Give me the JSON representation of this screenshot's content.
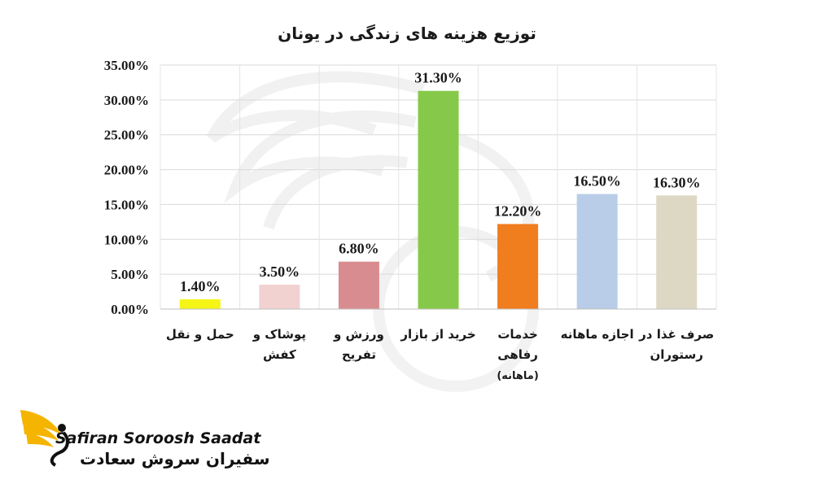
{
  "chart_data": {
    "type": "bar",
    "title": "توزیع هزینه های زندگی در یونان",
    "xlabel": "",
    "ylabel": "",
    "categories": [
      [
        "حمل و نقل"
      ],
      [
        "پوشاک و",
        "کفش"
      ],
      [
        "ورزش و",
        "تفریح"
      ],
      [
        "خرید از بازار"
      ],
      [
        "خدمات",
        "رفاهی",
        "(ماهانه)"
      ],
      [
        "اجازه ماهانه"
      ],
      [
        "صرف غذا در",
        "رستوران"
      ]
    ],
    "values": [
      1.4,
      3.5,
      6.8,
      31.3,
      12.2,
      16.5,
      16.3
    ],
    "data_labels": [
      "1.40%",
      "3.50%",
      "6.80%",
      "31.30%",
      "12.20%",
      "16.50%",
      "16.30%"
    ],
    "ylim": [
      0,
      35
    ],
    "yticks": [
      "0.00%",
      "5.00%",
      "10.00%",
      "15.00%",
      "20.00%",
      "25.00%",
      "30.00%",
      "35.00%"
    ],
    "grid": true,
    "legend": "none",
    "colors": [
      "#f5f518",
      "#f2d2d0",
      "#d98c8f",
      "#86c94a",
      "#f07d1e",
      "#b9cde8",
      "#ddd8c4"
    ]
  },
  "logo": {
    "name_en": "Safiran Soroosh Saadat",
    "name_fa": "سفیران سروش سعادت",
    "icon": "winged-s-logo-icon",
    "accent": "#f5b400"
  }
}
